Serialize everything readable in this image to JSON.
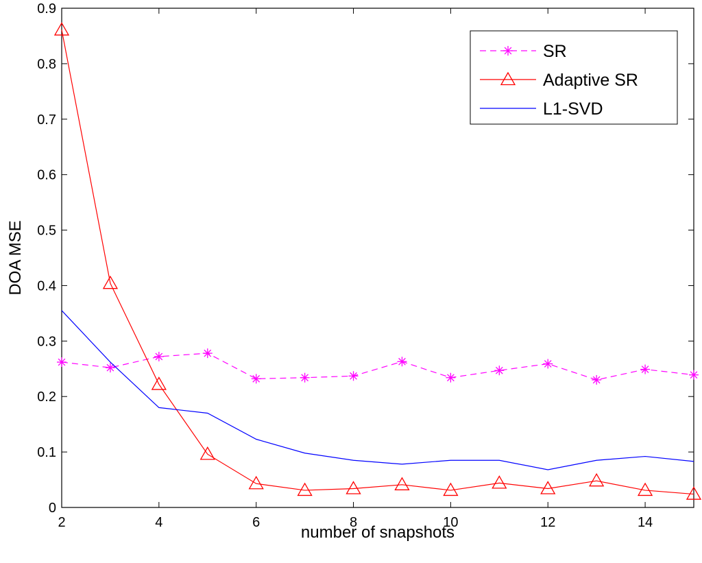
{
  "chart_data": {
    "type": "line",
    "xlabel": "number of snapshots",
    "ylabel": "DOA MSE",
    "xlim": [
      2,
      15
    ],
    "ylim": [
      0,
      0.9
    ],
    "xticks": [
      "2",
      "4",
      "6",
      "8",
      "10",
      "12",
      "14"
    ],
    "yticks": [
      "0",
      "0.1",
      "0.2",
      "0.3",
      "0.4",
      "0.5",
      "0.6",
      "0.7",
      "0.8",
      "0.9"
    ],
    "grid": false,
    "legend_position": "top-right",
    "x": [
      2,
      3,
      4,
      5,
      6,
      7,
      8,
      9,
      10,
      11,
      12,
      13,
      14,
      15
    ],
    "series": [
      {
        "name": "SR",
        "color": "#ff00ff",
        "line_style": "dashed",
        "marker": "asterisk",
        "values": [
          0.262,
          0.252,
          0.272,
          0.278,
          0.232,
          0.234,
          0.237,
          0.263,
          0.234,
          0.247,
          0.259,
          0.23,
          0.249,
          0.239
        ]
      },
      {
        "name": "Adaptive SR",
        "color": "#ff0000",
        "line_style": "solid",
        "marker": "triangle",
        "values": [
          0.861,
          0.404,
          0.222,
          0.096,
          0.043,
          0.031,
          0.034,
          0.041,
          0.031,
          0.044,
          0.034,
          0.048,
          0.031,
          0.024
        ]
      },
      {
        "name": "L1-SVD",
        "color": "#0000ff",
        "line_style": "solid",
        "marker": "none",
        "values": [
          0.355,
          0.262,
          0.18,
          0.17,
          0.123,
          0.098,
          0.085,
          0.078,
          0.085,
          0.085,
          0.068,
          0.085,
          0.092,
          0.083
        ]
      }
    ]
  }
}
